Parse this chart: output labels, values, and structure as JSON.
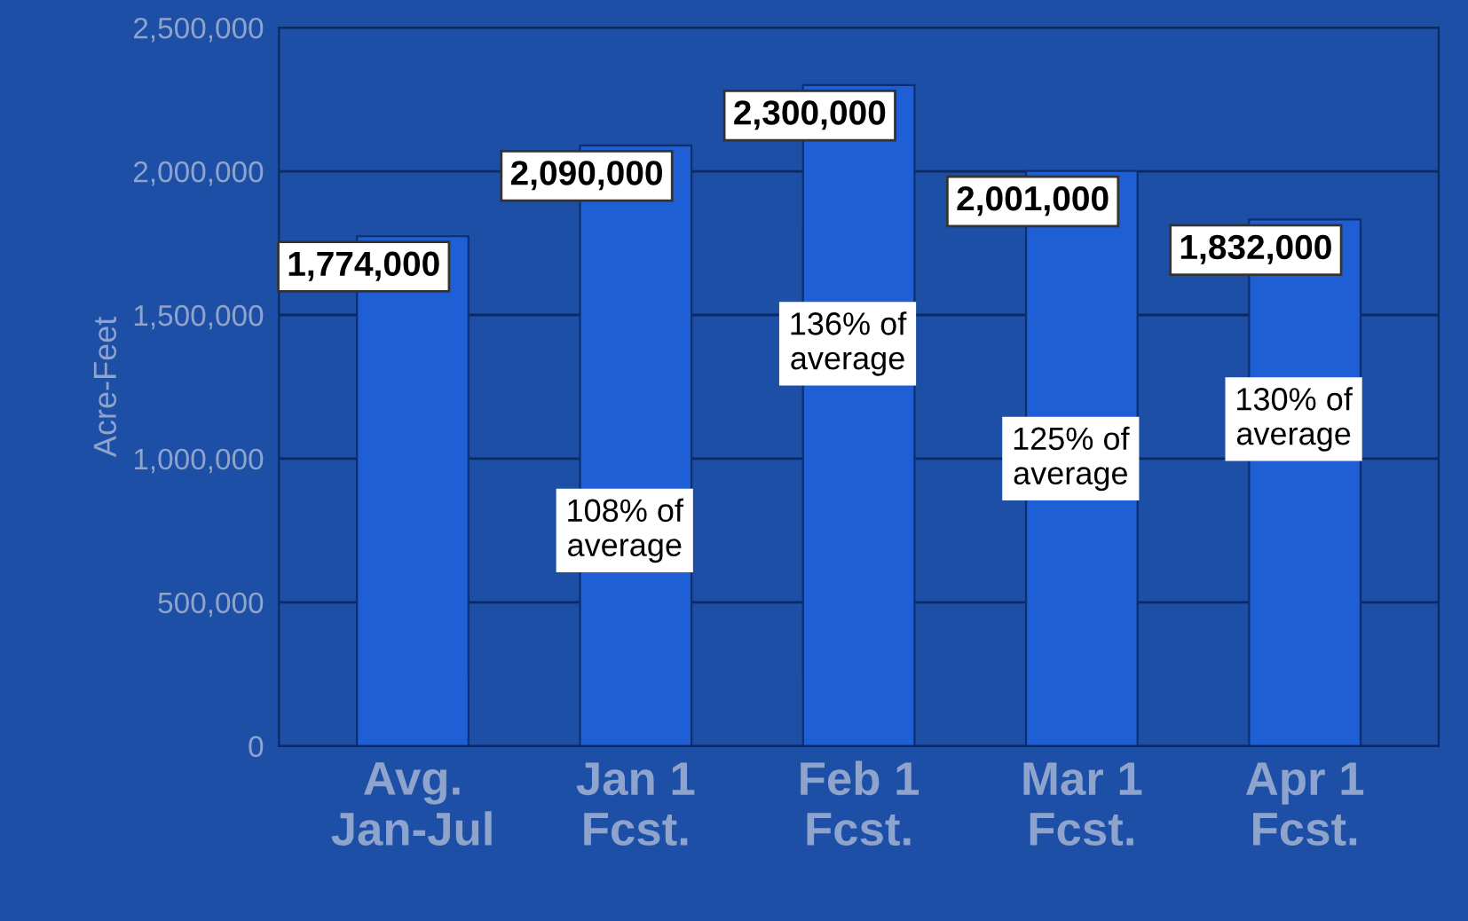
{
  "chart_data": {
    "type": "bar",
    "categories": [
      "Avg.\nJan-Jul",
      "Jan 1\nFcst.",
      "Feb 1\nFcst.",
      "Mar 1\nFcst.",
      "Apr 1\nFcst."
    ],
    "values": [
      1774000,
      2090000,
      2300000,
      2001000,
      1832000
    ],
    "color": "#1f5fd6",
    "ylabel": "Acre-Feet",
    "ylim": [
      0,
      2500000
    ],
    "yticks": [
      {
        "value": 0,
        "label": "0"
      },
      {
        "value": 500000,
        "label": "500,000"
      },
      {
        "value": 1000000,
        "label": "1,000,000"
      },
      {
        "value": 1500000,
        "label": "1,500,000"
      },
      {
        "value": 2000000,
        "label": "2,000,000"
      },
      {
        "value": 2500000,
        "label": "2,500,000"
      }
    ],
    "grid": "y",
    "value_labels": [
      "1,774,000",
      "2,090,000",
      "2,300,000",
      "2,001,000",
      "1,832,000"
    ],
    "annotations": [
      "108% of\naverage",
      "136% of\naverage",
      "125% of\naverage",
      "130% of\naverage"
    ]
  }
}
